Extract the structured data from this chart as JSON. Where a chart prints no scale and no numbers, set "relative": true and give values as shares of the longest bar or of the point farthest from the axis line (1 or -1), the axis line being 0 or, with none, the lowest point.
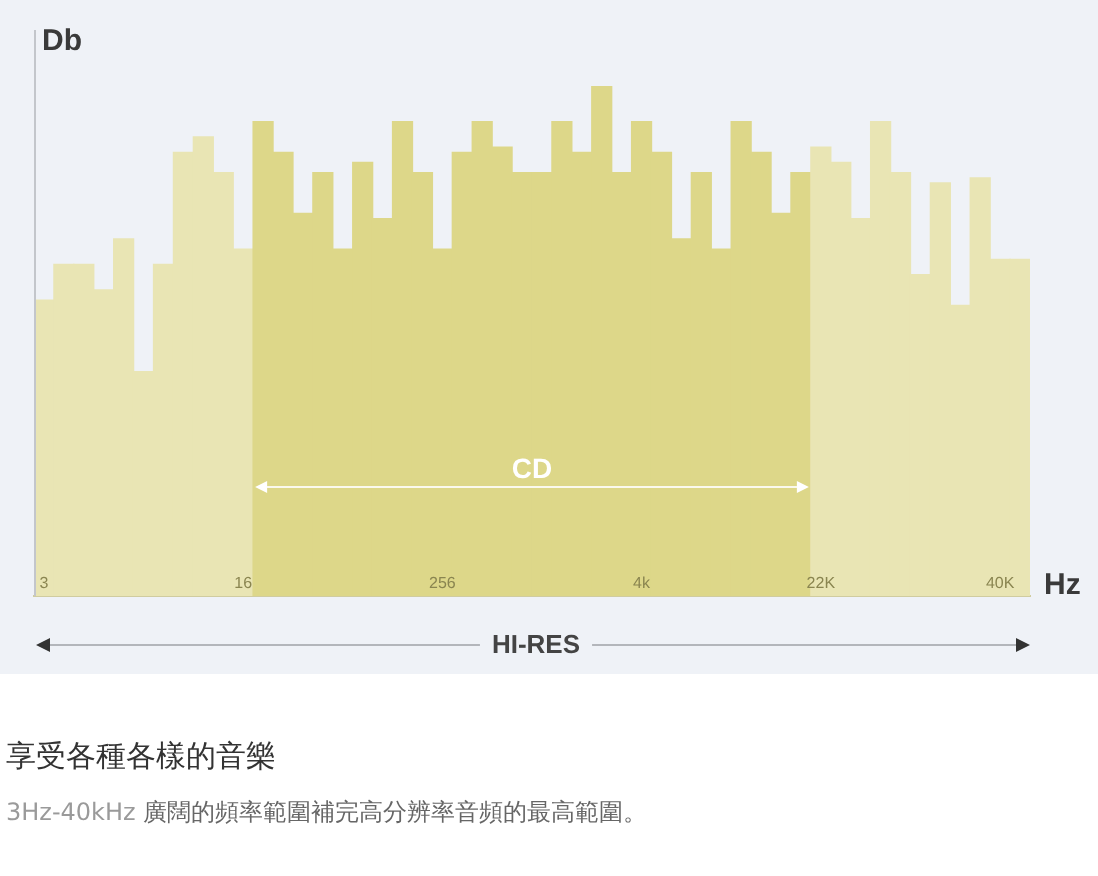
{
  "chart_data": {
    "type": "bar",
    "relative": true,
    "ylabel": "Db",
    "xlabel": "Hz",
    "title": "享受各種各樣的音樂",
    "subtitle": "3Hz-40kHz 廣闊的頻率範圍補完高分辨率音頻的最高範圍。",
    "categories": [
      "3",
      null,
      null,
      null,
      null,
      null,
      null,
      null,
      null,
      null,
      "16",
      null,
      null,
      null,
      null,
      null,
      null,
      null,
      null,
      null,
      "256",
      null,
      null,
      null,
      null,
      null,
      null,
      null,
      null,
      null,
      "4k",
      null,
      null,
      null,
      null,
      null,
      null,
      null,
      null,
      "22K",
      null,
      null,
      null,
      null,
      null,
      null,
      null,
      null,
      "40K",
      null
    ],
    "values": [
      0.58,
      0.65,
      0.65,
      0.6,
      0.7,
      0.44,
      0.65,
      0.87,
      0.9,
      0.83,
      0.68,
      0.93,
      0.87,
      0.75,
      0.83,
      0.68,
      0.85,
      0.74,
      0.93,
      0.83,
      0.68,
      0.87,
      0.93,
      0.88,
      0.83,
      0.83,
      0.93,
      0.87,
      1,
      0.83,
      0.93,
      0.87,
      0.7,
      0.83,
      0.68,
      0.93,
      0.87,
      0.75,
      0.83,
      0.88,
      0.85,
      0.74,
      0.93,
      0.83,
      0.63,
      0.81,
      0.57,
      0.82,
      0.66,
      0.66
    ],
    "colors": [
      "#e9e5b4",
      "#e9e5b4",
      "#e9e5b4",
      "#e9e5b4",
      "#e9e5b4",
      "#e9e5b4",
      "#e9e5b4",
      "#e9e5b4",
      "#e9e5b4",
      "#e9e5b4",
      "#e9e5b4",
      "#ddd789",
      "#ddd789",
      "#ddd789",
      "#ddd789",
      "#ddd789",
      "#ddd789",
      "#ddd789",
      "#ddd789",
      "#ddd789",
      "#ddd789",
      "#ddd789",
      "#ddd789",
      "#ddd789",
      "#ddd789",
      "#ddd789",
      "#ddd789",
      "#ddd789",
      "#ddd789",
      "#ddd789",
      "#ddd789",
      "#ddd789",
      "#ddd789",
      "#ddd789",
      "#ddd789",
      "#ddd789",
      "#ddd789",
      "#ddd789",
      "#ddd789",
      "#e9e5b4",
      "#e9e5b4",
      "#e9e5b4",
      "#e9e5b4",
      "#e9e5b4",
      "#e9e5b4",
      "#e9e5b4",
      "#e9e5b4",
      "#e9e5b4",
      "#e9e5b4",
      "#e9e5b4"
    ],
    "annotations": [
      "CD",
      "HI-RES"
    ]
  }
}
